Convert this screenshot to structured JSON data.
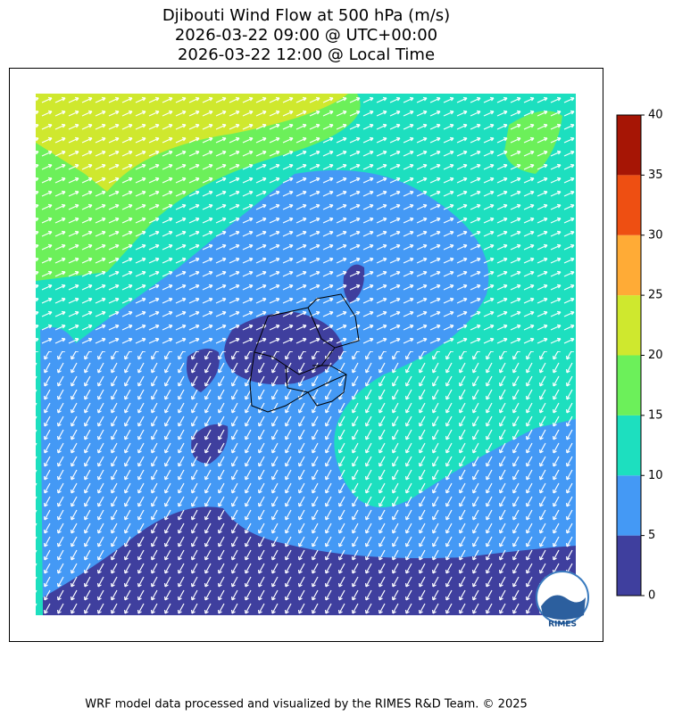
{
  "title": [
    "Djibouti Wind Flow at 500 hPa (m/s)",
    "2026-03-22 09:00 @ UTC+00:00",
    "2026-03-22 12:00 @ Local Time"
  ],
  "colorbar": {
    "levels": [
      0,
      5,
      10,
      15,
      20,
      25,
      30,
      35,
      40
    ],
    "colors": [
      "#3f3f9e",
      "#4499f5",
      "#1ddfbf",
      "#6cf05a",
      "#cfe82e",
      "#ffab36",
      "#ee4f12",
      "#a61505"
    ]
  },
  "logo": {
    "text": "RIMES"
  },
  "footer": "WRF model data processed and visualized by the RIMES R&D Team. © 2025"
}
